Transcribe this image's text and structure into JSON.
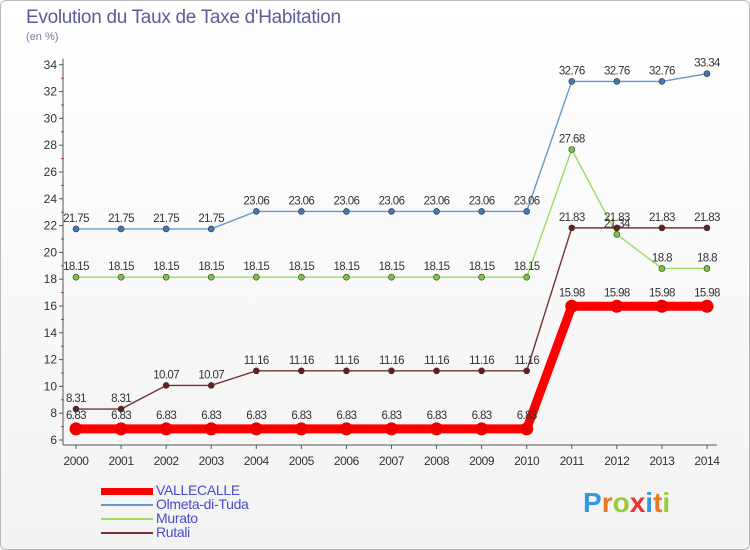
{
  "chart_data": {
    "type": "line",
    "title": "Evolution du Taux de Taxe d'Habitation",
    "subtitle": "(en %)",
    "x": [
      "2000",
      "2001",
      "2002",
      "2003",
      "2004",
      "2005",
      "2006",
      "2007",
      "2008",
      "2009",
      "2010",
      "2011",
      "2012",
      "2013",
      "2014"
    ],
    "ylim": [
      6,
      34
    ],
    "yticks": [
      6,
      8,
      10,
      12,
      14,
      16,
      18,
      20,
      22,
      24,
      26,
      28,
      30,
      32,
      34
    ],
    "series": [
      {
        "name": "Olmeta-di-Tuda",
        "color": "#6699cc",
        "marker": "#3d7ab8",
        "values": [
          21.75,
          21.75,
          21.75,
          21.75,
          23.06,
          23.06,
          23.06,
          23.06,
          23.06,
          23.06,
          23.06,
          32.76,
          32.76,
          32.76,
          33.34
        ],
        "labels": [
          "21.75",
          "21.75",
          "21.75",
          "21.75",
          "23.06",
          "23.06",
          "23.06",
          "23.06",
          "23.06",
          "23.06",
          "23.06",
          "32.76",
          "32.76",
          "32.76",
          "33.34"
        ]
      },
      {
        "name": "Murato",
        "color": "#99dd66",
        "marker": "#7cc43c",
        "values": [
          18.15,
          18.15,
          18.15,
          18.15,
          18.15,
          18.15,
          18.15,
          18.15,
          18.15,
          18.15,
          18.15,
          27.68,
          21.34,
          18.8,
          18.8
        ],
        "labels": [
          "18.15",
          "18.15",
          "18.15",
          "18.15",
          "18.15",
          "18.15",
          "18.15",
          "18.15",
          "18.15",
          "18.15",
          "18.15",
          "27.68",
          "21.34",
          "18.8",
          "18.8"
        ]
      },
      {
        "name": "Rutali",
        "color": "#773333",
        "marker": "#6a1f1f",
        "values": [
          8.31,
          8.31,
          10.07,
          10.07,
          11.16,
          11.16,
          11.16,
          11.16,
          11.16,
          11.16,
          11.16,
          21.83,
          21.83,
          21.83,
          21.83
        ],
        "labels": [
          "8.31",
          "8.31",
          "10.07",
          "10.07",
          "11.16",
          "11.16",
          "11.16",
          "11.16",
          "11.16",
          "11.16",
          "11.16",
          "21.83",
          "21.83",
          "21.83",
          "21.83"
        ]
      },
      {
        "name": "VALLECALLE",
        "color": "#ff0000",
        "marker": "#ee0000",
        "values": [
          6.83,
          6.83,
          6.83,
          6.83,
          6.83,
          6.83,
          6.83,
          6.83,
          6.83,
          6.83,
          6.83,
          15.98,
          15.98,
          15.98,
          15.98
        ],
        "labels": [
          "6.83",
          "6.83",
          "6.83",
          "6.83",
          "6.83",
          "6.83",
          "6.83",
          "6.83",
          "6.83",
          "6.83",
          "6.83",
          "15.98",
          "15.98",
          "15.98",
          "15.98"
        ]
      }
    ],
    "legend_order": [
      "VALLECALLE",
      "Olmeta-di-Tuda",
      "Murato",
      "Rutali"
    ],
    "grid": false,
    "legend_position": "bottom-left"
  },
  "brand": {
    "letters": [
      "P",
      "r",
      "o",
      "x",
      "i",
      "t",
      "i"
    ],
    "colors": [
      "#3399dd",
      "#ee7722",
      "#99cc33",
      "#ee3333",
      "#3399dd",
      "#ee7722",
      "#99cc33"
    ]
  },
  "colors": {
    "title": "#5c5c9a",
    "legend_text": "#4a4acc",
    "axis": "#555555"
  }
}
